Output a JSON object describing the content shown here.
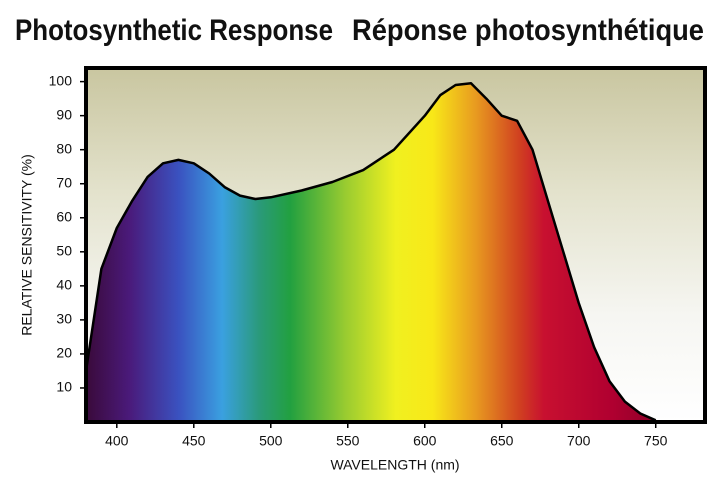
{
  "chart_data": {
    "type": "area",
    "title": "Photosynthetic Response",
    "subtitle": "Réponse photosynthétique",
    "x_label": "WAVELENGTH (nm)",
    "y_label": "RELATIVE  SENSITIVITY (%)",
    "x": [
      380,
      390,
      400,
      410,
      420,
      430,
      440,
      450,
      460,
      470,
      480,
      490,
      500,
      520,
      540,
      560,
      580,
      600,
      610,
      620,
      630,
      640,
      650,
      660,
      670,
      680,
      690,
      700,
      710,
      720,
      730,
      740,
      750
    ],
    "values": [
      15,
      45,
      57,
      65,
      72,
      76,
      77,
      76,
      73,
      69,
      66.5,
      65.5,
      66,
      68,
      70.5,
      74,
      80,
      90,
      96,
      99,
      99.5,
      95,
      90,
      88.5,
      80,
      65,
      50,
      35,
      22,
      12,
      6,
      2.5,
      0.5
    ],
    "xlim": [
      380,
      782
    ],
    "ylim": [
      0,
      104
    ],
    "xticks": [
      400,
      450,
      500,
      550,
      600,
      650,
      700,
      750
    ],
    "yticks": [
      10,
      20,
      30,
      40,
      50,
      60,
      70,
      80,
      90,
      100
    ],
    "grid": false,
    "color": "#000000"
  }
}
